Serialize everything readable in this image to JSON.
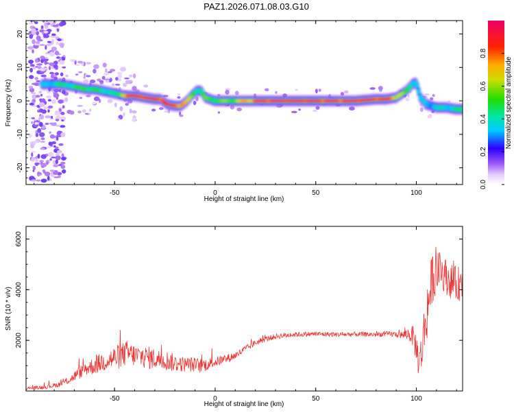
{
  "title": "PAZ1.2026.071.08.03.G10",
  "chart_data": [
    {
      "type": "heatmap",
      "xlabel": "Height of straight line (km)",
      "ylabel": "Frequency (Hz)",
      "xlim": [
        -94,
        123
      ],
      "ylim": [
        -25,
        24
      ],
      "xticks": [
        -50,
        0,
        50,
        100
      ],
      "yticks": [
        -20,
        -10,
        0,
        10,
        20
      ],
      "colorbar": {
        "label": "Normalized spectral amplitude",
        "range": [
          0,
          1
        ],
        "ticks": [
          "0.0",
          "0.2",
          "0.4",
          "0.6",
          "0.8"
        ]
      },
      "ridge": {
        "x": [
          -84,
          -78,
          -72,
          -68,
          -64,
          -60,
          -56,
          -52,
          -48,
          -45,
          -40,
          -35,
          -30,
          -27,
          -24,
          -20,
          -17,
          -14,
          -11,
          -9,
          -7,
          -5,
          0,
          10,
          20,
          30,
          40,
          50,
          60,
          70,
          80,
          85,
          90,
          95,
          98,
          100,
          102,
          105,
          110,
          115,
          120,
          123
        ],
        "freq": [
          5,
          5,
          4.5,
          4,
          3.5,
          3.5,
          3,
          2.5,
          2,
          1.5,
          1.5,
          1,
          0.5,
          0.5,
          -1,
          -1.5,
          -1.5,
          0,
          2,
          3,
          3,
          1,
          0,
          0,
          0,
          0,
          0,
          0,
          0,
          0,
          0.5,
          0.5,
          1,
          3,
          5,
          5.5,
          1,
          -1,
          -2,
          -2,
          -2.5,
          -2.5
        ],
        "amplitude": [
          0.3,
          0.4,
          0.4,
          0.45,
          0.5,
          0.45,
          0.4,
          0.4,
          0.35,
          0.8,
          0.9,
          0.95,
          0.95,
          0.9,
          0.85,
          0.9,
          0.8,
          0.6,
          0.5,
          0.45,
          0.4,
          0.5,
          0.5,
          0.55,
          0.8,
          0.95,
          0.95,
          0.9,
          0.85,
          0.95,
          0.9,
          0.85,
          0.7,
          0.45,
          0.4,
          0.35,
          0.3,
          0.3,
          0.35,
          0.35,
          0.4,
          0.4
        ]
      }
    },
    {
      "type": "line",
      "xlabel": "Height of straight line (km)",
      "ylabel": "SNR (10 * v/v)",
      "xlim": [
        -94,
        123
      ],
      "ylim": [
        0,
        6500
      ],
      "xticks": [
        -50,
        0,
        50,
        100
      ],
      "yticks": [
        2000,
        4000,
        6000
      ],
      "color": "#ee3333",
      "series": [
        {
          "x": [
            -94,
            -85,
            -78,
            -72,
            -68,
            -64,
            -60,
            -56,
            -52,
            -48,
            -44,
            -40,
            -36,
            -32,
            -28,
            -24,
            -20,
            -16,
            -12,
            -8,
            -4,
            0,
            5,
            10,
            15,
            20,
            25,
            30,
            35,
            40,
            50,
            60,
            70,
            80,
            85,
            90,
            93,
            96,
            98,
            99,
            100,
            101,
            102,
            103,
            105,
            108,
            112,
            116,
            120,
            123
          ],
          "y": [
            100,
            150,
            250,
            450,
            700,
            900,
            1000,
            1150,
            1250,
            1350,
            1500,
            1400,
            1350,
            1300,
            1250,
            1200,
            1100,
            1050,
            1050,
            1000,
            1050,
            1150,
            1250,
            1400,
            1650,
            1900,
            2050,
            2150,
            2200,
            2230,
            2250,
            2230,
            2240,
            2230,
            2250,
            2240,
            2200,
            2250,
            2200,
            2000,
            1700,
            1300,
            1200,
            1800,
            3000,
            4500,
            4800,
            4400,
            4200,
            4300
          ],
          "noise": [
            60,
            80,
            100,
            150,
            250,
            300,
            350,
            400,
            450,
            500,
            500,
            450,
            450,
            450,
            400,
            400,
            350,
            300,
            300,
            300,
            250,
            200,
            200,
            150,
            150,
            120,
            110,
            110,
            110,
            100,
            100,
            100,
            100,
            100,
            100,
            120,
            150,
            250,
            400,
            500,
            600,
            700,
            800,
            900,
            1200,
            1000,
            700,
            700,
            700,
            700
          ]
        }
      ]
    }
  ]
}
